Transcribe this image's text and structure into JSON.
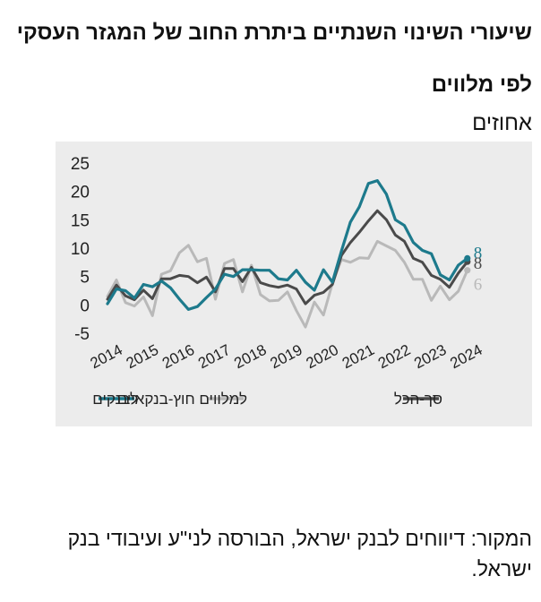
{
  "title": "שיעורי השינוי השנתיים ביתרת החוב של המגזר העסקי לפי מלווים",
  "unit": "אחוזים",
  "source": "המקור: דיווחים לבנק ישראל, הבורסה לני\"ע ועיבודי בנק ישראל.",
  "colors": {
    "banks": "#1d7a8c",
    "nonbank": "#b9b9b9",
    "total": "#4a4a4a",
    "panel": "#ececec"
  },
  "chart_data": {
    "type": "line",
    "x_start": 2014.0,
    "x_step": 0.25,
    "xlim": [
      2014.0,
      2025.25
    ],
    "ylim": [
      -5,
      25
    ],
    "yticks": [
      "25",
      "20",
      "15",
      "10",
      "5",
      "0",
      "-5"
    ],
    "ytick_values": [
      25,
      20,
      15,
      10,
      5,
      0,
      -5
    ],
    "xticks": [
      "2014",
      "2015",
      "2016",
      "2017",
      "2018",
      "2019",
      "2020",
      "2021",
      "2022",
      "2023",
      "2024"
    ],
    "xtick_values": [
      2014,
      2015,
      2016,
      2017,
      2018,
      2019,
      2020,
      2021,
      2022,
      2023,
      2024
    ],
    "grid": false,
    "legend": "bottom",
    "series": [
      {
        "name": "לבנקים",
        "color": "#1d7a8c",
        "end_label": "8",
        "values": [
          0.2,
          2.8,
          2.5,
          1.2,
          3.6,
          3.2,
          4.2,
          3.0,
          1.0,
          -0.8,
          -0.3,
          1.3,
          2.8,
          5.4,
          5.0,
          6.2,
          6.2,
          6.1,
          6.1,
          4.6,
          4.4,
          6.1,
          4.0,
          2.6,
          6.2,
          4.0,
          9.5,
          14.6,
          17.3,
          21.4,
          21.9,
          19.5,
          15.0,
          14.0,
          11.0,
          9.6,
          9.0,
          5.3,
          4.4,
          7.0,
          8.2
        ]
      },
      {
        "name": "למלווים חוץ-בנקאיים",
        "color": "#b9b9b9",
        "end_label": "6",
        "values": [
          1.5,
          4.4,
          0.4,
          -0.2,
          1.4,
          -1.9,
          5.4,
          6.0,
          9.2,
          10.5,
          7.6,
          8.2,
          1.0,
          7.3,
          8.0,
          2.3,
          7.0,
          1.8,
          0.7,
          0.8,
          2.3,
          -1.0,
          -3.9,
          0.5,
          -1.8,
          3.8,
          8.0,
          7.5,
          8.3,
          8.2,
          11.2,
          10.4,
          9.6,
          7.5,
          4.5,
          4.5,
          0.8,
          3.3,
          0.9,
          2.4,
          6.1
        ]
      },
      {
        "name": "סך-הכל",
        "color": "#4a4a4a",
        "end_label": "8",
        "values": [
          1.0,
          3.5,
          1.6,
          0.9,
          2.6,
          1.1,
          4.6,
          4.6,
          5.2,
          5.0,
          3.9,
          4.9,
          2.3,
          6.4,
          6.4,
          4.1,
          6.6,
          3.9,
          3.4,
          3.1,
          3.5,
          2.8,
          0.2,
          1.7,
          2.2,
          3.6,
          8.7,
          11.0,
          12.8,
          14.8,
          16.6,
          15.0,
          12.3,
          11.2,
          8.2,
          7.5,
          5.2,
          4.5,
          3.1,
          5.6,
          7.6
        ]
      }
    ]
  }
}
